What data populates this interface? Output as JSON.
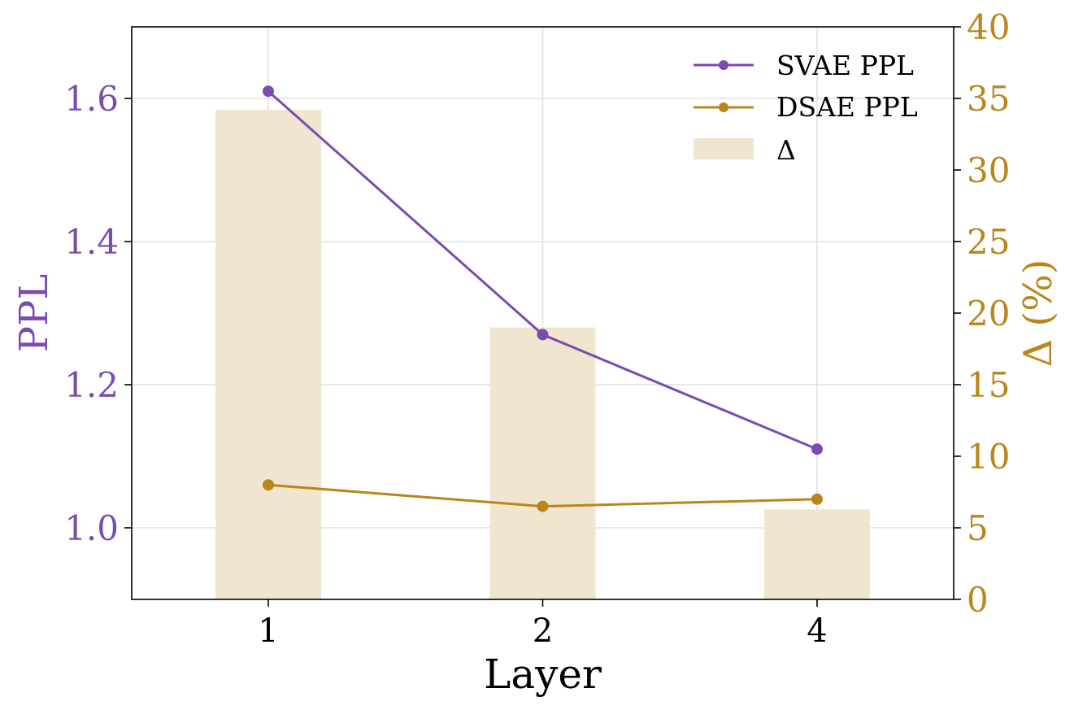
{
  "chart_data": {
    "type": "bar+line",
    "categories": [
      "1",
      "2",
      "4"
    ],
    "xlabel": "Layer",
    "ylabel_left": "PPL",
    "ylabel_right": "Δ (%)",
    "ylim_left": [
      0.9,
      1.7
    ],
    "ylim_right": [
      0,
      40
    ],
    "yticks_left": [
      "1.0",
      "1.2",
      "1.4",
      "1.6"
    ],
    "yticks_right": [
      "0",
      "5",
      "10",
      "15",
      "20",
      "25",
      "30",
      "35",
      "40"
    ],
    "grid": true,
    "legend_position": "top-right",
    "series": [
      {
        "name": "SVAE PPL",
        "type": "line",
        "axis": "left",
        "values": [
          1.61,
          1.27,
          1.11
        ],
        "color": "#7b4bb0"
      },
      {
        "name": "DSAE PPL",
        "type": "line",
        "axis": "left",
        "values": [
          1.06,
          1.03,
          1.04
        ],
        "color": "#b8861b"
      },
      {
        "name": "Δ",
        "type": "bar",
        "axis": "right",
        "values": [
          34.2,
          19.0,
          6.3
        ],
        "color": "#f0e6cf"
      }
    ],
    "colors": {
      "left_axis": "#7b4bb0",
      "right_axis": "#b8861b",
      "grid": "#e0e0e0",
      "frame": "#000000"
    }
  }
}
